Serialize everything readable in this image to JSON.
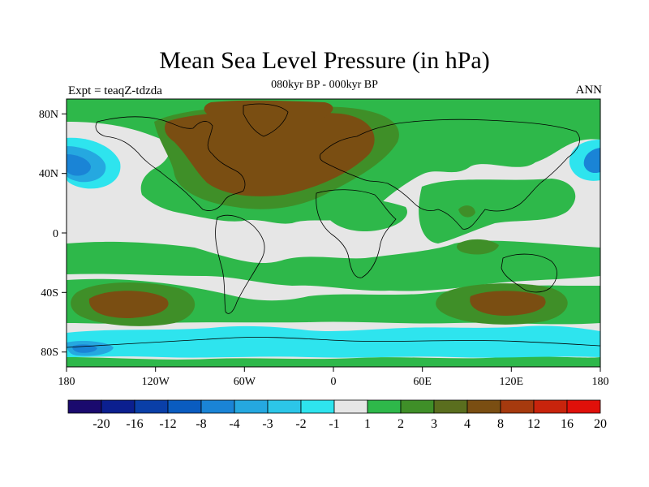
{
  "title": "Mean Sea Level Pressure (in hPa)",
  "subtitle": "080kyr BP - 000kyr BP",
  "left_label": "Expt = teaqZ-tdzda",
  "right_label": "ANN",
  "axes": {
    "lat_ticks": [
      {
        "label": "80N",
        "value": 80
      },
      {
        "label": "40N",
        "value": 40
      },
      {
        "label": "0",
        "value": 0
      },
      {
        "label": "40S",
        "value": -40
      },
      {
        "label": "80S",
        "value": -80
      }
    ],
    "lon_ticks": [
      {
        "label": "180",
        "value": -180
      },
      {
        "label": "120W",
        "value": -120
      },
      {
        "label": "60W",
        "value": -60
      },
      {
        "label": "0",
        "value": 0
      },
      {
        "label": "60E",
        "value": 60
      },
      {
        "label": "120E",
        "value": 120
      },
      {
        "label": "180",
        "value": 180
      }
    ]
  },
  "colorbar": {
    "labels": [
      "-20",
      "-16",
      "-12",
      "-8",
      "-4",
      "-3",
      "-2",
      "-1",
      "1",
      "2",
      "3",
      "4",
      "8",
      "12",
      "16",
      "20"
    ],
    "colors": [
      "#1a0a6e",
      "#0b1f8f",
      "#0a3fa8",
      "#0a5cc0",
      "#1a84d6",
      "#25a8e0",
      "#2cc6e8",
      "#2ee4ee",
      "#e6e6e6",
      "#2eb84a",
      "#3f8f28",
      "#5a6e1e",
      "#7a4e12",
      "#a63a0e",
      "#c8240c",
      "#e0100a"
    ]
  },
  "colors": {
    "neutral": "#e6e6e6",
    "green": "#2eb84a",
    "olive": "#3f8f28",
    "brown": "#7a4e12",
    "cyan": "#2ee4ee",
    "light_blue": "#25a8e0",
    "blue": "#0a5cc0"
  },
  "map_regions": [
    {
      "name": "north-atlantic-high",
      "level": "4"
    },
    {
      "name": "arctic-canada-high",
      "level": "4"
    },
    {
      "name": "south-pacific-high",
      "level": "4"
    },
    {
      "name": "south-indian-high",
      "level": "4"
    },
    {
      "name": "north-pacific-low",
      "level": "-4"
    },
    {
      "name": "antarctic-low",
      "level": "-2"
    }
  ]
}
